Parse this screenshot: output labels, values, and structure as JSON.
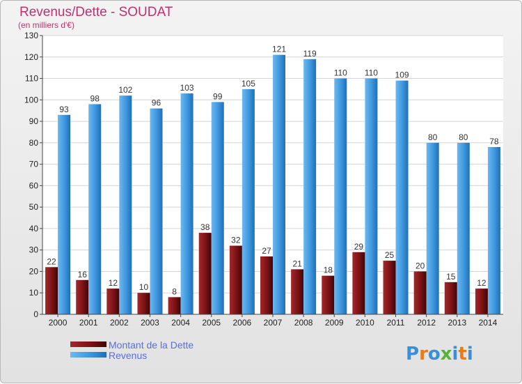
{
  "chart_data": {
    "type": "bar",
    "title": "Revenus/Dette - SOUDAT",
    "subtitle": "(en milliers d'€)",
    "categories": [
      "2000",
      "2001",
      "2002",
      "2003",
      "2004",
      "2005",
      "2006",
      "2007",
      "2008",
      "2009",
      "2010",
      "2011",
      "2012",
      "2013",
      "2014"
    ],
    "series": [
      {
        "name": "Montant de la Dette",
        "color": "#7a1215",
        "values": [
          22,
          16,
          12,
          10,
          8,
          38,
          32,
          27,
          21,
          18,
          29,
          25,
          20,
          15,
          12
        ]
      },
      {
        "name": "Revenus",
        "color": "#3d96dd",
        "values": [
          93,
          98,
          102,
          96,
          103,
          99,
          105,
          121,
          119,
          110,
          110,
          109,
          80,
          80,
          78
        ]
      }
    ],
    "ylim": [
      0,
      130
    ],
    "yticks": [
      0,
      10,
      20,
      30,
      40,
      50,
      60,
      70,
      80,
      90,
      100,
      110,
      120,
      130
    ],
    "grid": true,
    "legend": "bottom-left"
  },
  "logo": {
    "text": "Proxiti",
    "letters": [
      "P",
      "r",
      "o",
      "x",
      "i",
      "t",
      "i"
    ],
    "colors": [
      "#3a8fd6",
      "#ea7a1a",
      "#3a8fd6",
      "#58b23a",
      "#3a8fd6",
      "#ea7a1a",
      "#3a8fd6"
    ]
  }
}
